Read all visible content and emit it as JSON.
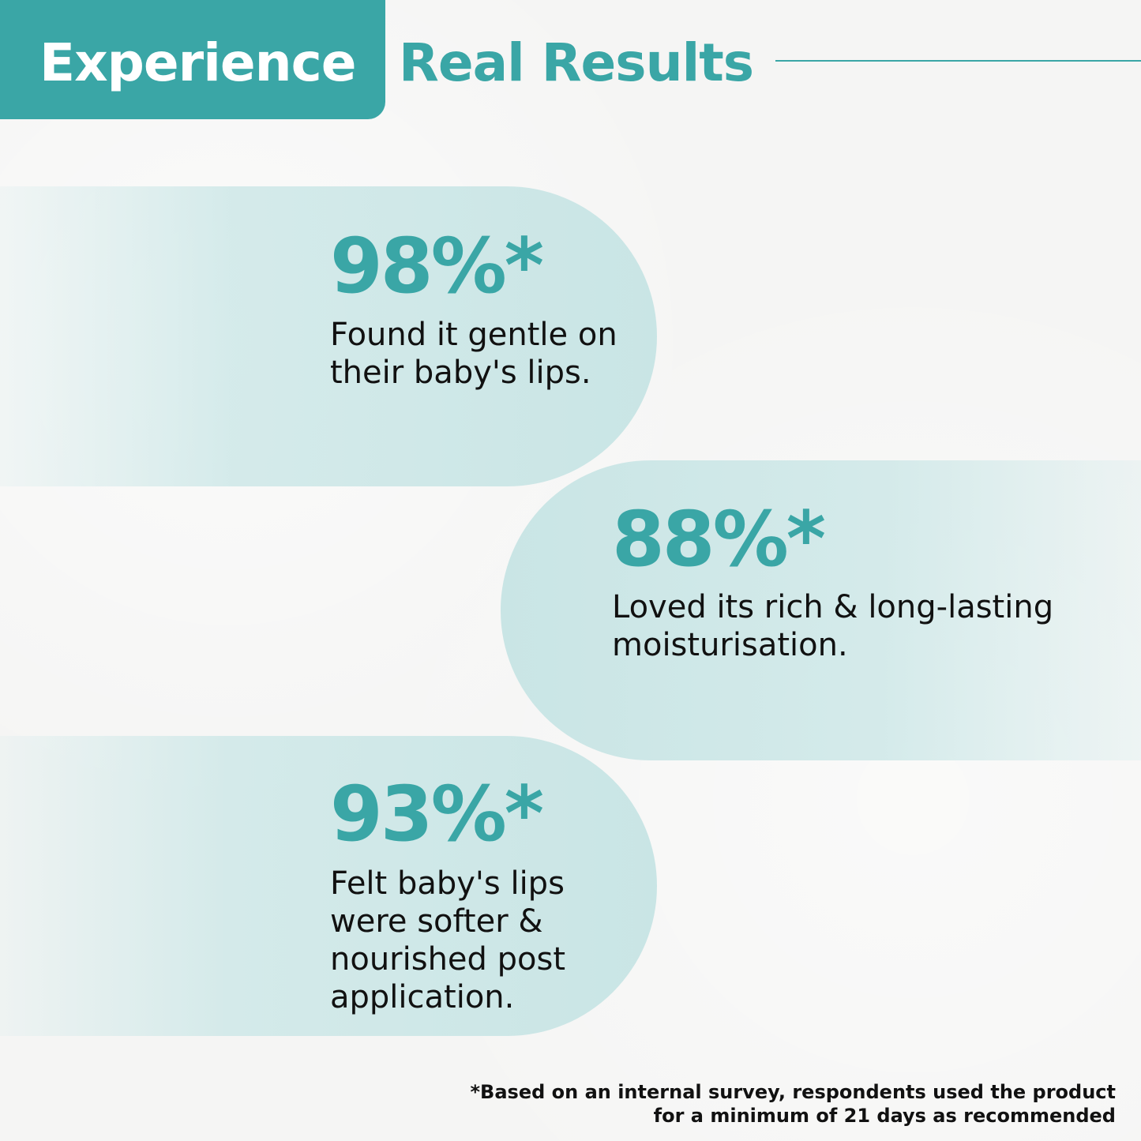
{
  "header": {
    "title_highlight": "Experience",
    "title_rest": "Real Results"
  },
  "stats": [
    {
      "value": "98%*",
      "description_lines": [
        "Found it gentle on",
        "their baby's lips."
      ]
    },
    {
      "value": "88%*",
      "description_lines": [
        "Loved its rich & long-lasting",
        "moisturisation."
      ]
    },
    {
      "value": "93%*",
      "description_lines": [
        "Felt baby's lips",
        "were softer &",
        "nourished post",
        "application."
      ]
    }
  ],
  "footnote": {
    "lines": [
      "*Based on an internal survey, respondents used the product",
      "for a minimum of 21 days as recommended"
    ]
  },
  "colors": {
    "accent": "#3aa6a6",
    "pill": "#c9e5e5",
    "text": "#111111",
    "background": "#f5f5f4"
  }
}
